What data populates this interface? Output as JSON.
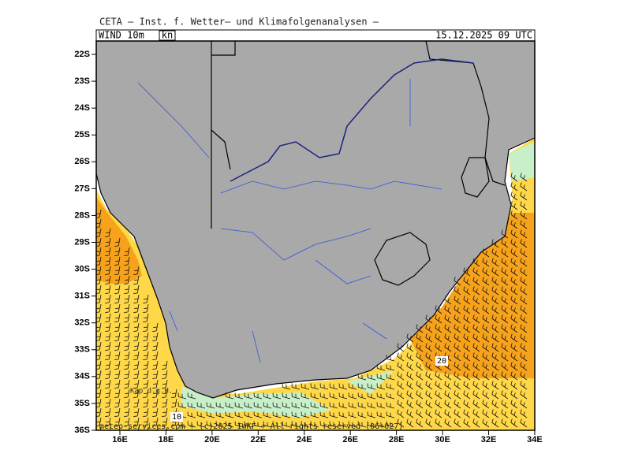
{
  "header": {
    "title": "CETA — Inst. f. Wetter— und Klimafolgenanalysen —",
    "field": "WIND 10m",
    "unit": "kn",
    "valid_time": "15.12.2025 09 UTC"
  },
  "map": {
    "lat_ticks": [
      {
        "value": 22,
        "label": "22S"
      },
      {
        "value": 23,
        "label": "23S"
      },
      {
        "value": 24,
        "label": "24S"
      },
      {
        "value": 25,
        "label": "25S"
      },
      {
        "value": 26,
        "label": "26S"
      },
      {
        "value": 27,
        "label": "27S"
      },
      {
        "value": 28,
        "label": "28S"
      },
      {
        "value": 29,
        "label": "29S"
      },
      {
        "value": 30,
        "label": "30S"
      },
      {
        "value": 31,
        "label": "31S"
      },
      {
        "value": 32,
        "label": "32S"
      },
      {
        "value": 33,
        "label": "33S"
      },
      {
        "value": 34,
        "label": "34S"
      },
      {
        "value": 35,
        "label": "35S"
      },
      {
        "value": 36,
        "label": "36S"
      }
    ],
    "lon_ticks": [
      {
        "value": 16,
        "label": "16E"
      },
      {
        "value": 18,
        "label": "18E"
      },
      {
        "value": 20,
        "label": "20E"
      },
      {
        "value": 22,
        "label": "22E"
      },
      {
        "value": 24,
        "label": "24E"
      },
      {
        "value": 26,
        "label": "26E"
      },
      {
        "value": 28,
        "label": "28E"
      },
      {
        "value": 30,
        "label": "30E"
      },
      {
        "value": 32,
        "label": "32E"
      },
      {
        "value": 34,
        "label": "34E"
      }
    ],
    "place_label": "Kap d.g.H.",
    "contour_labels": [
      "10",
      "20"
    ],
    "footer": "meteo-services.com + (c)2025 IWKF + All rights reserved (06+027)"
  }
}
